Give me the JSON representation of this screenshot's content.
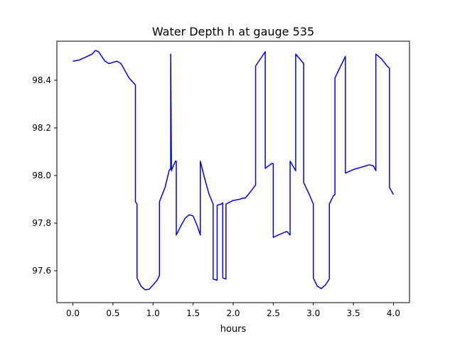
{
  "chart_data": {
    "type": "line",
    "title": "Water Depth h at gauge 535",
    "xlabel": "hours",
    "ylabel": "",
    "xlim": [
      -0.2,
      4.2
    ],
    "ylim": [
      97.466,
      98.564
    ],
    "xticks": [
      0.0,
      0.5,
      1.0,
      1.5,
      2.0,
      2.5,
      3.0,
      3.5,
      4.0
    ],
    "xtick_labels": [
      "0.0",
      "0.5",
      "1.0",
      "1.5",
      "2.0",
      "2.5",
      "3.0",
      "3.5",
      "4.0"
    ],
    "yticks": [
      97.6,
      97.8,
      98.0,
      98.2,
      98.4
    ],
    "ytick_labels": [
      "97.6",
      "97.8",
      "98.0",
      "98.2",
      "98.4"
    ],
    "grid": false,
    "legend": "none",
    "color": "#0000ff",
    "series": [
      {
        "x": [
          0.0,
          0.08,
          0.16,
          0.24,
          0.28,
          0.32,
          0.36,
          0.4,
          0.45,
          0.5,
          0.55,
          0.6,
          0.65,
          0.7,
          0.78,
          0.78,
          0.8,
          0.8,
          0.85,
          0.9,
          0.95,
          1.0,
          1.05,
          1.08,
          1.08,
          1.15,
          1.2,
          1.22,
          1.22,
          1.23,
          1.24,
          1.26,
          1.28,
          1.29,
          1.29,
          1.35,
          1.4,
          1.45,
          1.5,
          1.55,
          1.59,
          1.59,
          1.65,
          1.7,
          1.75,
          1.75,
          1.8,
          1.8,
          1.85,
          1.87,
          1.87,
          1.91,
          1.91,
          2.0,
          2.08,
          2.12,
          2.15,
          2.2,
          2.28,
          2.28,
          2.4,
          2.4,
          2.48,
          2.5,
          2.5,
          2.53,
          2.56,
          2.6,
          2.63,
          2.67,
          2.71,
          2.71,
          2.78,
          2.78,
          2.88,
          2.88,
          2.95,
          3.0,
          3.0,
          3.05,
          3.1,
          3.15,
          3.2,
          3.2,
          3.25,
          3.27,
          3.27,
          3.4,
          3.4,
          3.5,
          3.55,
          3.6,
          3.65,
          3.7,
          3.75,
          3.78,
          3.78,
          3.85,
          3.92,
          3.95,
          3.95,
          4.0
        ],
        "y": [
          98.48,
          98.485,
          98.497,
          98.51,
          98.525,
          98.52,
          98.5,
          98.48,
          98.47,
          98.475,
          98.48,
          98.47,
          98.44,
          98.41,
          98.38,
          97.89,
          97.88,
          97.57,
          97.535,
          97.52,
          97.522,
          97.54,
          97.56,
          97.58,
          97.89,
          97.95,
          98.02,
          98.03,
          98.51,
          98.02,
          98.03,
          98.045,
          98.06,
          98.06,
          97.75,
          97.79,
          97.82,
          97.835,
          97.83,
          97.79,
          97.75,
          98.06,
          97.98,
          97.92,
          97.88,
          97.565,
          97.56,
          97.875,
          97.88,
          97.885,
          97.57,
          97.565,
          97.88,
          97.895,
          97.9,
          97.905,
          97.905,
          97.925,
          97.96,
          98.46,
          98.52,
          98.03,
          98.05,
          98.05,
          97.74,
          97.745,
          97.75,
          97.755,
          97.76,
          97.765,
          97.75,
          98.06,
          98.02,
          98.51,
          98.47,
          97.97,
          97.92,
          97.88,
          97.57,
          97.535,
          97.525,
          97.54,
          97.565,
          97.88,
          97.915,
          97.92,
          98.41,
          98.5,
          98.01,
          98.025,
          98.03,
          98.035,
          98.04,
          98.045,
          98.04,
          98.02,
          98.51,
          98.49,
          98.46,
          98.45,
          97.95,
          97.92
        ]
      }
    ]
  }
}
